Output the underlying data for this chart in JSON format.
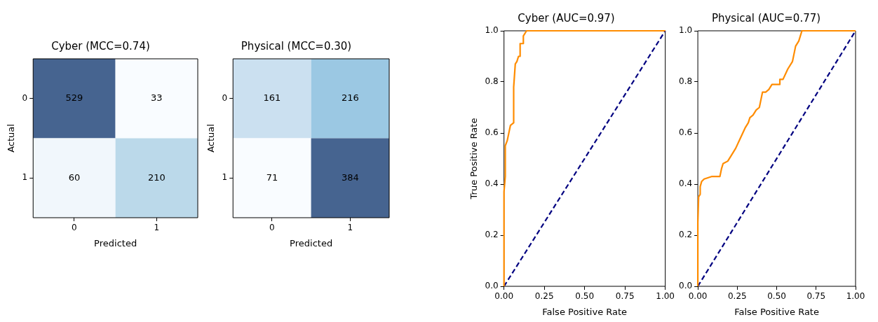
{
  "chart_data": [
    {
      "type": "heatmap",
      "title": "Cyber (MCC=0.74)",
      "xlabel": "Predicted",
      "ylabel": "Actual",
      "categories": [
        "0",
        "1"
      ],
      "y_categories": [
        "0",
        "1"
      ],
      "cells": [
        [
          529,
          33
        ],
        [
          60,
          210
        ]
      ],
      "data_labels": true
    },
    {
      "type": "heatmap",
      "title": "Physical (MCC=0.30)",
      "xlabel": "Predicted",
      "ylabel": "Actual",
      "categories": [
        "0",
        "1"
      ],
      "y_categories": [
        "0",
        "1"
      ],
      "cells": [
        [
          161,
          216
        ],
        [
          71,
          384
        ]
      ],
      "data_labels": true
    },
    {
      "type": "line",
      "title": "Cyber (AUC=0.97)",
      "xlabel": "False Positive Rate",
      "ylabel": "True Positive Rate",
      "xlim": [
        0,
        1
      ],
      "ylim": [
        0,
        1
      ],
      "xticks": [
        {
          "value": 0,
          "label": "0.00"
        },
        {
          "value": 0.25,
          "label": "0.25"
        },
        {
          "value": 0.5,
          "label": "0.50"
        },
        {
          "value": 0.75,
          "label": "0.75"
        },
        {
          "value": 1,
          "label": "1.00"
        }
      ],
      "yticks": [
        {
          "value": 0,
          "label": "0.0"
        },
        {
          "value": 0.2,
          "label": "0.2"
        },
        {
          "value": 0.4,
          "label": "0.4"
        },
        {
          "value": 0.6,
          "label": "0.6"
        },
        {
          "value": 0.8,
          "label": "0.8"
        },
        {
          "value": 1,
          "label": "1.0"
        }
      ],
      "series": [
        {
          "color": "#ff8c00",
          "x": [
            0,
            0,
            0.008,
            0.008,
            0.02,
            0.03,
            0.04,
            0.06,
            0.06,
            0.07,
            0.08,
            0.09,
            0.1,
            0.1,
            0.12,
            0.12,
            0.14,
            1
          ],
          "values": [
            0,
            0.37,
            0.43,
            0.55,
            0.57,
            0.6,
            0.63,
            0.64,
            0.78,
            0.87,
            0.88,
            0.9,
            0.9,
            0.95,
            0.95,
            0.98,
            1,
            1
          ]
        },
        {
          "color": "#000080",
          "line_style": "dashed",
          "x": [
            0,
            1
          ],
          "values": [
            0,
            1
          ]
        }
      ]
    },
    {
      "type": "line",
      "title": "Physical (AUC=0.77)",
      "xlabel": "False Positive Rate",
      "xlim": [
        0,
        1
      ],
      "ylim": [
        0,
        1
      ],
      "xticks": [
        {
          "value": 0,
          "label": "0.00"
        },
        {
          "value": 0.25,
          "label": "0.25"
        },
        {
          "value": 0.5,
          "label": "0.50"
        },
        {
          "value": 0.75,
          "label": "0.75"
        },
        {
          "value": 1,
          "label": "1.00"
        }
      ],
      "yticks": [
        {
          "value": 0,
          "label": "0.0"
        },
        {
          "value": 0.2,
          "label": "0.2"
        },
        {
          "value": 0.4,
          "label": "0.4"
        },
        {
          "value": 0.6,
          "label": "0.6"
        },
        {
          "value": 0.8,
          "label": "0.8"
        },
        {
          "value": 1,
          "label": "1.0"
        }
      ],
      "series": [
        {
          "color": "#ff8c00",
          "x": [
            0,
            0,
            0.005,
            0.015,
            0.015,
            0.024,
            0.04,
            0.09,
            0.14,
            0.15,
            0.16,
            0.19,
            0.21,
            0.24,
            0.27,
            0.3,
            0.32,
            0.33,
            0.35,
            0.37,
            0.39,
            0.41,
            0.43,
            0.45,
            0.47,
            0.52,
            0.52,
            0.54,
            0.57,
            0.6,
            0.61,
            0.62,
            0.64,
            0.66,
            1
          ],
          "values": [
            0,
            0.25,
            0.35,
            0.36,
            0.39,
            0.41,
            0.42,
            0.43,
            0.43,
            0.46,
            0.48,
            0.49,
            0.51,
            0.54,
            0.58,
            0.62,
            0.64,
            0.66,
            0.67,
            0.69,
            0.7,
            0.76,
            0.76,
            0.77,
            0.79,
            0.79,
            0.81,
            0.81,
            0.85,
            0.88,
            0.91,
            0.94,
            0.96,
            1,
            1
          ]
        },
        {
          "color": "#000080",
          "line_style": "dashed",
          "x": [
            0,
            1
          ],
          "values": [
            0,
            1
          ]
        }
      ]
    }
  ]
}
